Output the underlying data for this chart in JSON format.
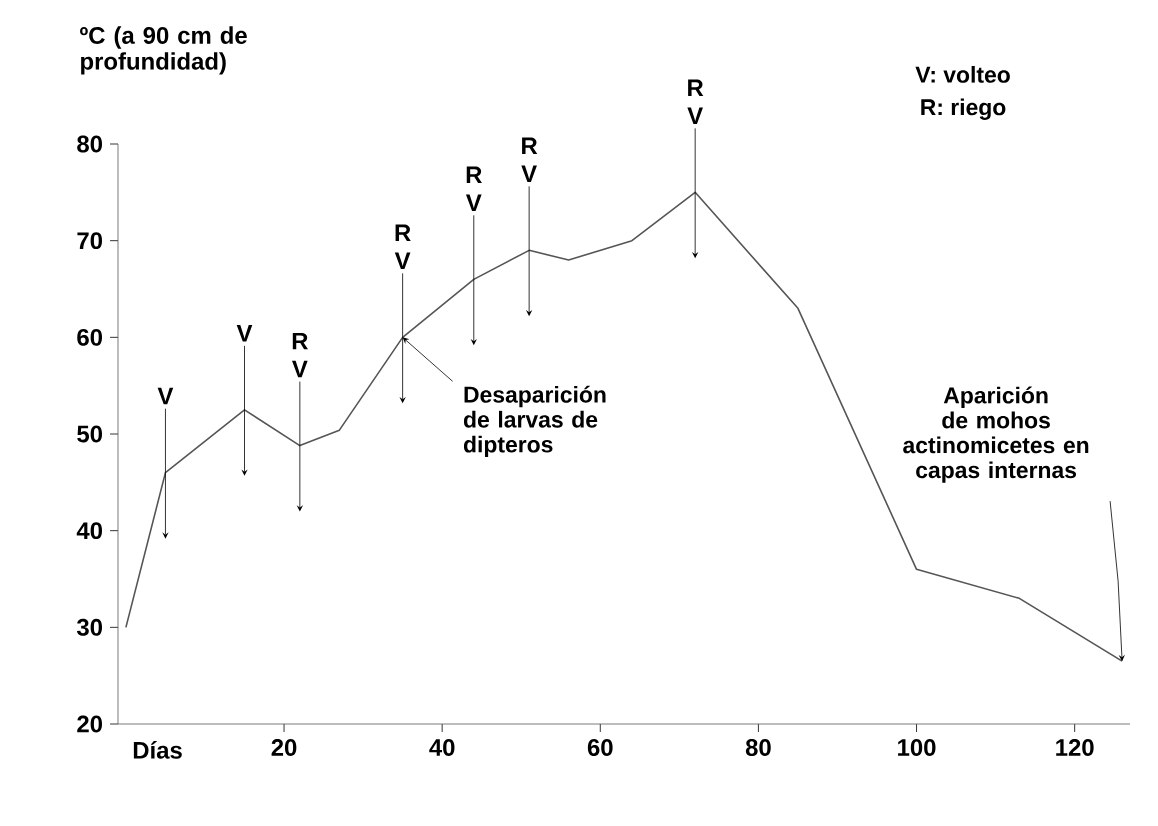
{
  "chart_data": {
    "type": "line",
    "ylabel": "ºC (a 90 cm de profundidad)",
    "xlabel": "Días",
    "x": [
      0,
      5,
      15,
      22,
      27,
      35,
      44,
      51,
      56,
      64,
      72,
      85,
      100,
      113,
      126
    ],
    "values": [
      30,
      46,
      52.5,
      48.8,
      50.4,
      60,
      66,
      69,
      68,
      70,
      75,
      63,
      36,
      33,
      26.5
    ],
    "color": "#555555",
    "xlim": [
      -1,
      127
    ],
    "ylim": [
      20,
      80
    ],
    "xticks": [
      20,
      40,
      60,
      80,
      100,
      120
    ],
    "yticks": [
      20,
      30,
      40,
      50,
      60,
      70,
      80
    ],
    "annotations": [
      {
        "text": "V",
        "x": 5,
        "y": 46
      },
      {
        "text": "V",
        "x": 15,
        "y": 52.5
      },
      {
        "text": "R V",
        "x": 22,
        "y": 48.8
      },
      {
        "text": "R V",
        "x": 35,
        "y": 60
      },
      {
        "text": "R V",
        "x": 44,
        "y": 66
      },
      {
        "text": "R V",
        "x": 51,
        "y": 69
      },
      {
        "text": "R V",
        "x": 72,
        "y": 75
      },
      {
        "text": "Desaparición de larvas de dipteros",
        "x": 35,
        "y": 60
      },
      {
        "text": "Aparición de mohos actinomicetes en capas internas",
        "x": 126,
        "y": 26.5
      },
      "V: volteo",
      "R: riego"
    ]
  }
}
